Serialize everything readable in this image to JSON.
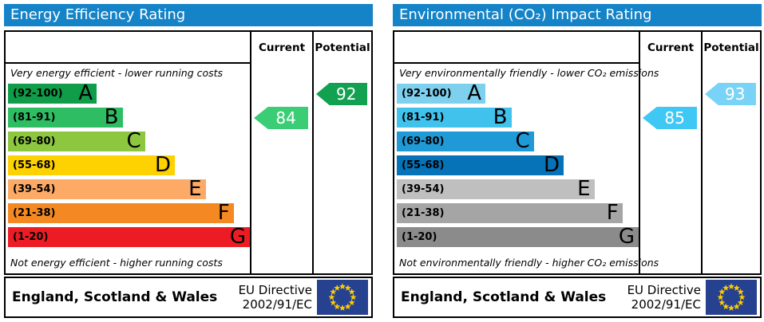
{
  "colors": {
    "title_bg": "#1583c7",
    "border": "#000000",
    "flag_bg": "#26418f",
    "flag_star": "#ffcc00"
  },
  "chart_data": [
    {
      "type": "bar",
      "id": "energy-efficiency",
      "title": "Energy Efficiency Rating",
      "columns": {
        "current": "Current",
        "potential": "Potential"
      },
      "top_caption": "Very energy efficient - lower running costs",
      "bottom_caption": "Not energy efficient - higher running costs",
      "bands": [
        {
          "letter": "A",
          "range": "(92-100)",
          "min": 92,
          "max": 100,
          "color": "#0f9d49",
          "width_pct": 36.3
        },
        {
          "letter": "B",
          "range": "(81-91)",
          "min": 81,
          "max": 91,
          "color": "#2ebd62",
          "width_pct": 46.9
        },
        {
          "letter": "C",
          "range": "(69-80)",
          "min": 69,
          "max": 80,
          "color": "#8dc63f",
          "width_pct": 56.1
        },
        {
          "letter": "D",
          "range": "(55-68)",
          "min": 55,
          "max": 68,
          "color": "#fed100",
          "width_pct": 68.3
        },
        {
          "letter": "E",
          "range": "(39-54)",
          "min": 39,
          "max": 54,
          "color": "#fcaa65",
          "width_pct": 80.9
        },
        {
          "letter": "F",
          "range": "(21-38)",
          "min": 21,
          "max": 38,
          "color": "#f48923",
          "width_pct": 92.4
        },
        {
          "letter": "G",
          "range": "(1-20)",
          "min": 1,
          "max": 20,
          "color": "#ed1c24",
          "width_pct": 100
        }
      ],
      "current": {
        "value": 84,
        "color": "#3bcd75"
      },
      "potential": {
        "value": 92,
        "color": "#12a150"
      },
      "footer": {
        "region": "England, Scotland & Wales",
        "directive": [
          "EU Directive",
          "2002/91/EC"
        ]
      }
    },
    {
      "type": "bar",
      "id": "environmental-co2-impact",
      "title": "Environmental (CO₂) Impact Rating",
      "columns": {
        "current": "Current",
        "potential": "Potential"
      },
      "top_caption": "Very environmentally friendly - lower CO₂ emissions",
      "bottom_caption": "Not environmentally friendly - higher CO₂ emissions",
      "bands": [
        {
          "letter": "A",
          "range": "(92-100)",
          "min": 92,
          "max": 100,
          "color": "#7ed0ef",
          "width_pct": 36.3
        },
        {
          "letter": "B",
          "range": "(81-91)",
          "min": 81,
          "max": 91,
          "color": "#41c2ed",
          "width_pct": 46.9
        },
        {
          "letter": "C",
          "range": "(69-80)",
          "min": 69,
          "max": 80,
          "color": "#1f9ad7",
          "width_pct": 56.1
        },
        {
          "letter": "D",
          "range": "(55-68)",
          "min": 55,
          "max": 68,
          "color": "#0672b8",
          "width_pct": 68.3
        },
        {
          "letter": "E",
          "range": "(39-54)",
          "min": 39,
          "max": 54,
          "color": "#bfbfbf",
          "width_pct": 80.9
        },
        {
          "letter": "F",
          "range": "(21-38)",
          "min": 21,
          "max": 38,
          "color": "#a5a5a5",
          "width_pct": 92.4
        },
        {
          "letter": "G",
          "range": "(1-20)",
          "min": 1,
          "max": 20,
          "color": "#8b8b8b",
          "width_pct": 100
        }
      ],
      "current": {
        "value": 85,
        "color": "#3fc8f4"
      },
      "potential": {
        "value": 93,
        "color": "#79d3f6"
      },
      "footer": {
        "region": "England, Scotland & Wales",
        "directive": [
          "EU Directive",
          "2002/91/EC"
        ]
      }
    }
  ]
}
